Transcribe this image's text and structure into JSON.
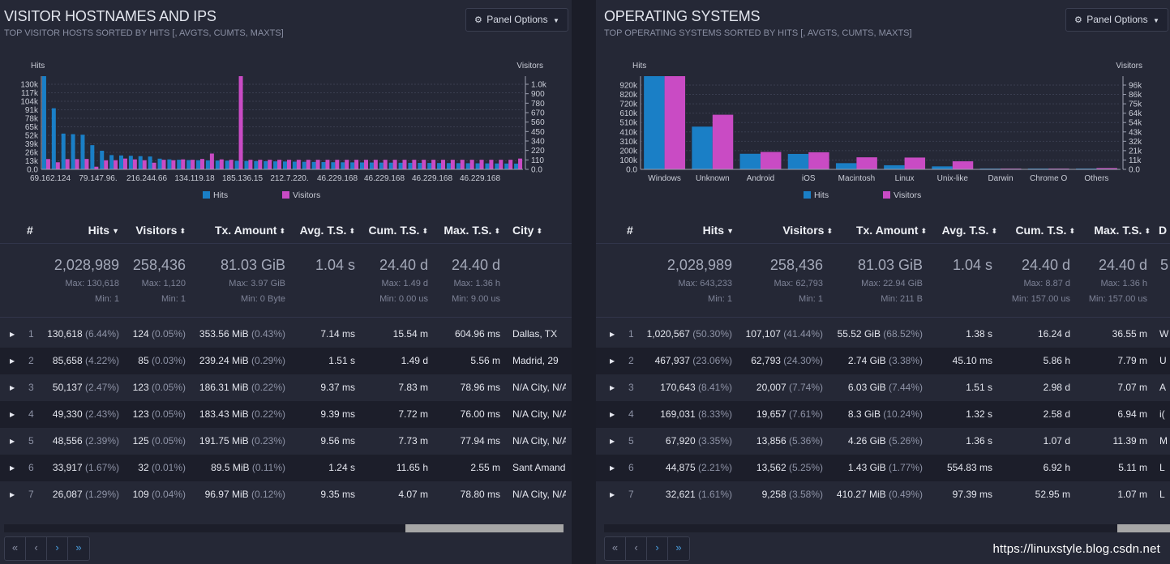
{
  "panels": [
    {
      "title": "VISITOR HOSTNAMES AND IPS",
      "subtitle": "TOP VISITOR HOSTS SORTED BY HITS [, AVGTS, CUMTS, MAXTS]",
      "options_label": "Panel Options",
      "columns": [
        "#",
        "Hits",
        "Visitors",
        "Tx. Amount",
        "Avg. T.S.",
        "Cum. T.S.",
        "Max. T.S.",
        "City"
      ],
      "summary": {
        "hits": {
          "total": "2,028,989",
          "max": "Max: 130,618",
          "min": "Min: 1"
        },
        "visitors": {
          "total": "258,436",
          "max": "Max: 1,120",
          "min": "Min: 1"
        },
        "tx": {
          "total": "81.03 GiB",
          "max": "Max: 3.97 GiB",
          "min": "Min: 0 Byte"
        },
        "avg": {
          "total": "1.04 s"
        },
        "cum": {
          "total": "24.40 d",
          "max": "Max: 1.49 d",
          "min": "Min: 0.00 us"
        },
        "maxts": {
          "total": "24.40 d",
          "max": "Max: 1.36 h",
          "min": "Min: 9.00 us"
        }
      },
      "rows": [
        {
          "n": "1",
          "hits": "130,618",
          "hits_pct": "(6.44%)",
          "visitors": "124",
          "visitors_pct": "(0.05%)",
          "tx": "353.56 MiB",
          "tx_pct": "(0.43%)",
          "avg": "7.14 ms",
          "cum": "15.54 m",
          "max": "604.96 ms",
          "last": "Dallas, TX"
        },
        {
          "n": "2",
          "hits": "85,658",
          "hits_pct": "(4.22%)",
          "visitors": "85",
          "visitors_pct": "(0.03%)",
          "tx": "239.24 MiB",
          "tx_pct": "(0.29%)",
          "avg": "1.51 s",
          "cum": "1.49 d",
          "max": "5.56 m",
          "last": "Madrid, 29"
        },
        {
          "n": "3",
          "hits": "50,137",
          "hits_pct": "(2.47%)",
          "visitors": "123",
          "visitors_pct": "(0.05%)",
          "tx": "186.31 MiB",
          "tx_pct": "(0.22%)",
          "avg": "9.37 ms",
          "cum": "7.83 m",
          "max": "78.96 ms",
          "last": "N/A City, N/A"
        },
        {
          "n": "4",
          "hits": "49,330",
          "hits_pct": "(2.43%)",
          "visitors": "123",
          "visitors_pct": "(0.05%)",
          "tx": "183.43 MiB",
          "tx_pct": "(0.22%)",
          "avg": "9.39 ms",
          "cum": "7.72 m",
          "max": "76.00 ms",
          "last": "N/A City, N/A"
        },
        {
          "n": "5",
          "hits": "48,556",
          "hits_pct": "(2.39%)",
          "visitors": "125",
          "visitors_pct": "(0.05%)",
          "tx": "191.75 MiB",
          "tx_pct": "(0.23%)",
          "avg": "9.56 ms",
          "cum": "7.73 m",
          "max": "77.94 ms",
          "last": "N/A City, N/A"
        },
        {
          "n": "6",
          "hits": "33,917",
          "hits_pct": "(1.67%)",
          "visitors": "32",
          "visitors_pct": "(0.01%)",
          "tx": "89.5 MiB",
          "tx_pct": "(0.11%)",
          "avg": "1.24 s",
          "cum": "11.65 h",
          "max": "2.55 m",
          "last": "Sant Amand"
        },
        {
          "n": "7",
          "hits": "26,087",
          "hits_pct": "(1.29%)",
          "visitors": "109",
          "visitors_pct": "(0.04%)",
          "tx": "96.97 MiB",
          "tx_pct": "(0.12%)",
          "avg": "9.35 ms",
          "cum": "4.07 m",
          "max": "78.80 ms",
          "last": "N/A City, N/A"
        }
      ]
    },
    {
      "title": "OPERATING SYSTEMS",
      "subtitle": "TOP OPERATING SYSTEMS SORTED BY HITS [, AVGTS, CUMTS, MAXTS]",
      "options_label": "Panel Options",
      "columns": [
        "#",
        "Hits",
        "Visitors",
        "Tx. Amount",
        "Avg. T.S.",
        "Cum. T.S.",
        "Max. T.S.",
        "D"
      ],
      "summary": {
        "hits": {
          "total": "2,028,989",
          "max": "Max: 643,233",
          "min": "Min: 1"
        },
        "visitors": {
          "total": "258,436",
          "max": "Max: 62,793",
          "min": "Min: 1"
        },
        "tx": {
          "total": "81.03 GiB",
          "max": "Max: 22.94 GiB",
          "min": "Min: 211 B"
        },
        "avg": {
          "total": "1.04 s"
        },
        "cum": {
          "total": "24.40 d",
          "max": "Max: 8.87 d",
          "min": "Min: 157.00 us"
        },
        "maxts": {
          "total": "24.40 d",
          "max": "Max: 1.36 h",
          "min": "Min: 157.00 us"
        },
        "extra": {
          "total": "5"
        }
      },
      "rows": [
        {
          "n": "1",
          "hits": "1,020,567",
          "hits_pct": "(50.30%)",
          "visitors": "107,107",
          "visitors_pct": "(41.44%)",
          "tx": "55.52 GiB",
          "tx_pct": "(68.52%)",
          "avg": "1.38 s",
          "cum": "16.24 d",
          "max": "36.55 m",
          "last": "W"
        },
        {
          "n": "2",
          "hits": "467,937",
          "hits_pct": "(23.06%)",
          "visitors": "62,793",
          "visitors_pct": "(24.30%)",
          "tx": "2.74 GiB",
          "tx_pct": "(3.38%)",
          "avg": "45.10 ms",
          "cum": "5.86 h",
          "max": "7.79 m",
          "last": "U"
        },
        {
          "n": "3",
          "hits": "170,643",
          "hits_pct": "(8.41%)",
          "visitors": "20,007",
          "visitors_pct": "(7.74%)",
          "tx": "6.03 GiB",
          "tx_pct": "(7.44%)",
          "avg": "1.51 s",
          "cum": "2.98 d",
          "max": "7.07 m",
          "last": "A"
        },
        {
          "n": "4",
          "hits": "169,031",
          "hits_pct": "(8.33%)",
          "visitors": "19,657",
          "visitors_pct": "(7.61%)",
          "tx": "8.3 GiB",
          "tx_pct": "(10.24%)",
          "avg": "1.32 s",
          "cum": "2.58 d",
          "max": "6.94 m",
          "last": "i("
        },
        {
          "n": "5",
          "hits": "67,920",
          "hits_pct": "(3.35%)",
          "visitors": "13,856",
          "visitors_pct": "(5.36%)",
          "tx": "4.26 GiB",
          "tx_pct": "(5.26%)",
          "avg": "1.36 s",
          "cum": "1.07 d",
          "max": "11.39 m",
          "last": "M"
        },
        {
          "n": "6",
          "hits": "44,875",
          "hits_pct": "(2.21%)",
          "visitors": "13,562",
          "visitors_pct": "(5.25%)",
          "tx": "1.43 GiB",
          "tx_pct": "(1.77%)",
          "avg": "554.83 ms",
          "cum": "6.92 h",
          "max": "5.11 m",
          "last": "L"
        },
        {
          "n": "7",
          "hits": "32,621",
          "hits_pct": "(1.61%)",
          "visitors": "9,258",
          "visitors_pct": "(3.58%)",
          "tx": "410.27 MiB",
          "tx_pct": "(0.49%)",
          "avg": "97.39 ms",
          "cum": "52.95 m",
          "max": "1.07 m",
          "last": "L"
        }
      ]
    }
  ],
  "pager": [
    "«",
    "‹",
    "›",
    "»"
  ],
  "watermark": "https://linuxstyle.blog.csdn.net",
  "colors": {
    "hits": "#1a7fc6",
    "visitors": "#c94bc4"
  },
  "chart_data": [
    {
      "type": "bar",
      "title": "Visitor Hostnames and IPs",
      "ylabel_left": "Hits",
      "ylabel_right": "Visitors",
      "yticks_left": [
        "0.0",
        "13k",
        "26k",
        "39k",
        "52k",
        "65k",
        "78k",
        "91k",
        "104k",
        "117k",
        "130k"
      ],
      "yticks_right": [
        "0.0",
        "110",
        "220",
        "340",
        "450",
        "560",
        "670",
        "780",
        "900",
        "1.0k"
      ],
      "ylim_left": [
        0,
        130618
      ],
      "ylim_right": [
        0,
        1120
      ],
      "xtick_labels": [
        "69.162.124",
        "79.147.96.",
        "216.244.66",
        "134.119.18",
        "185.136.15",
        "212.7.220.",
        "46.229.168",
        "46.229.168",
        "46.229.168",
        "46.229.168"
      ],
      "legend": [
        "Hits",
        "Visitors"
      ],
      "series": [
        {
          "name": "Hits",
          "axis": "left",
          "values": [
            130618,
            85658,
            50137,
            49330,
            48556,
            33917,
            26087,
            20000,
            19500,
            19000,
            18500,
            18000,
            15000,
            14000,
            13500,
            13000,
            12800,
            12600,
            12400,
            12200,
            12000,
            11800,
            11600,
            11400,
            11200,
            11000,
            10800,
            10600,
            10400,
            10200,
            10000,
            9900,
            9800,
            9700,
            9600,
            9500,
            9400,
            9300,
            9200,
            9100,
            9000,
            8900,
            8800,
            8700,
            8600,
            8500,
            8400,
            8300,
            8200,
            8100
          ]
        },
        {
          "name": "Visitors",
          "axis": "left-scaled-right",
          "values": [
            124,
            85,
            123,
            123,
            125,
            32,
            109,
            110,
            130,
            120,
            110,
            80,
            115,
            110,
            120,
            115,
            125,
            190,
            120,
            115,
            1120,
            115,
            115,
            115,
            115,
            115,
            115,
            115,
            115,
            115,
            115,
            115,
            115,
            115,
            115,
            115,
            115,
            115,
            115,
            115,
            115,
            115,
            115,
            115,
            115,
            115,
            115,
            115,
            115,
            130
          ]
        }
      ]
    },
    {
      "type": "bar",
      "title": "Operating Systems",
      "ylabel_left": "Hits",
      "ylabel_right": "Visitors",
      "yticks_left": [
        "0.0",
        "100k",
        "200k",
        "310k",
        "410k",
        "510k",
        "610k",
        "720k",
        "820k",
        "920k"
      ],
      "yticks_right": [
        "0.0",
        "11k",
        "21k",
        "32k",
        "43k",
        "54k",
        "64k",
        "75k",
        "86k",
        "96k"
      ],
      "ylim_left": [
        0,
        1020567
      ],
      "ylim_right": [
        0,
        107107
      ],
      "categories": [
        "Windows",
        "Unknown",
        "Android",
        "iOS",
        "Macintosh",
        "Linux",
        "Unix-like",
        "Darwin",
        "Chrome O",
        "Others"
      ],
      "legend": [
        "Hits",
        "Visitors"
      ],
      "series": [
        {
          "name": "Hits",
          "values": [
            1020567,
            467937,
            170643,
            169031,
            67920,
            44875,
            32621,
            3000,
            1500,
            800
          ]
        },
        {
          "name": "Visitors",
          "values": [
            107107,
            62793,
            20007,
            19657,
            13856,
            13562,
            9258,
            800,
            300,
            1500
          ]
        }
      ]
    }
  ]
}
